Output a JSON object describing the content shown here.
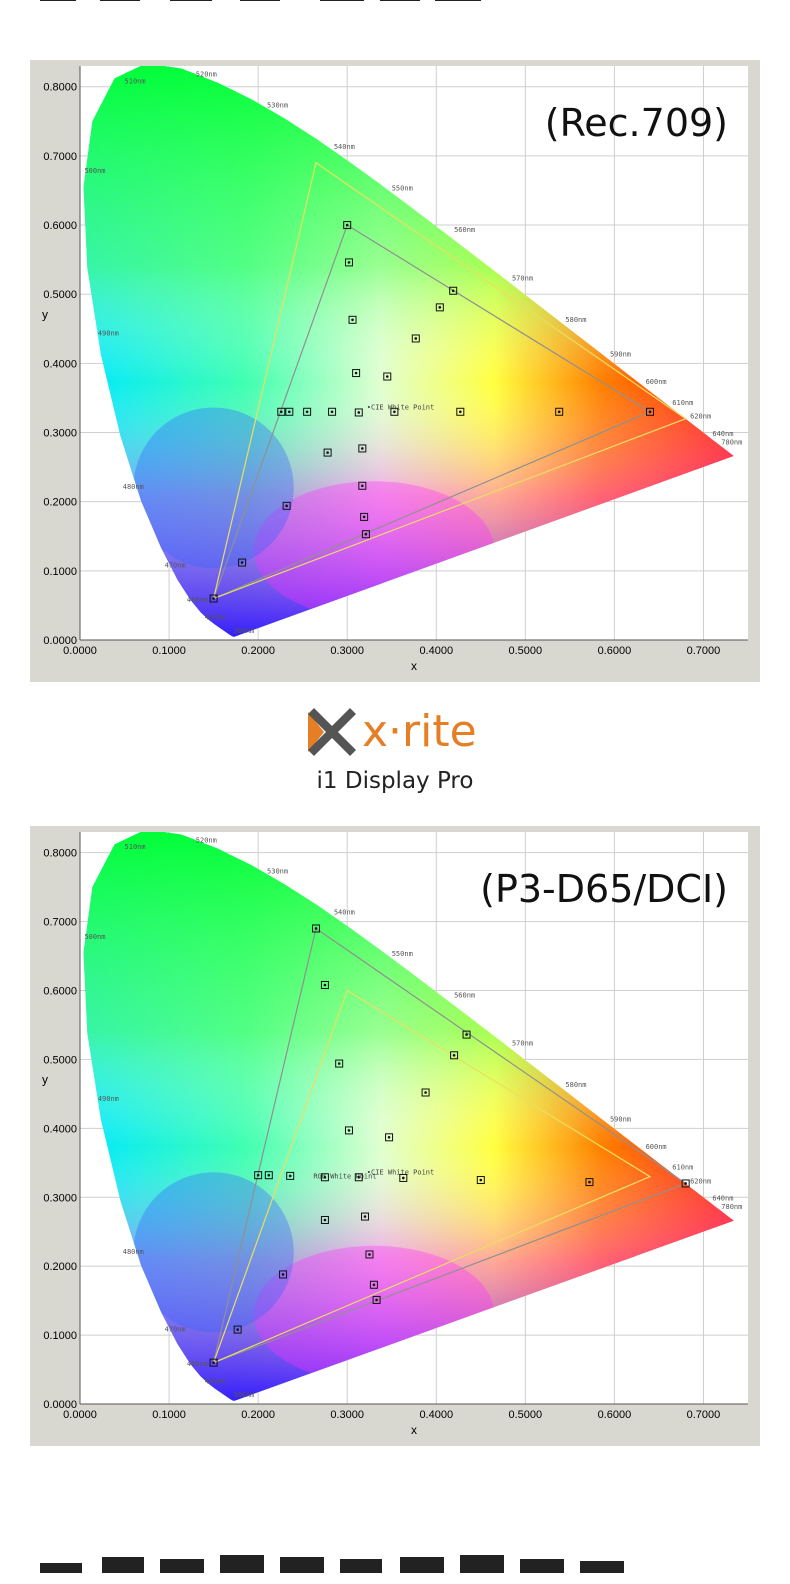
{
  "page": {
    "top_heading": "",
    "bottom_heading": ""
  },
  "brand": {
    "logo_icon": "x-rite-logo-icon",
    "name": "x·rite",
    "product": "i1 Display Pro",
    "accent_color": "#e57e25"
  },
  "chart_data": [
    {
      "type": "scatter",
      "title": "(Rec.709)",
      "xlabel": "x",
      "ylabel": "y",
      "xlim": [
        0,
        0.75
      ],
      "ylim": [
        0,
        0.83
      ],
      "x_ticks": [
        "0.0000",
        "0.1000",
        "0.2000",
        "0.3000",
        "0.4000",
        "0.5000",
        "0.6000",
        "0.7000"
      ],
      "y_ticks": [
        "0.0000",
        "0.1000",
        "0.2000",
        "0.3000",
        "0.4000",
        "0.5000",
        "0.6000",
        "0.7000",
        "0.8000"
      ],
      "grid": true,
      "white_point_label": "CIE White Point",
      "wavelength_labels": [
        "380nm",
        "450nm",
        "460nm",
        "470nm",
        "480nm",
        "490nm",
        "500nm",
        "510nm",
        "520nm",
        "530nm",
        "540nm",
        "550nm",
        "560nm",
        "570nm",
        "580nm",
        "590nm",
        "600nm",
        "610nm",
        "620nm",
        "640nm",
        "780nm"
      ],
      "series": [
        {
          "name": "target_gamut",
          "points": [
            [
              0.64,
              0.33
            ],
            [
              0.3,
              0.6
            ],
            [
              0.15,
              0.06
            ]
          ]
        },
        {
          "name": "reference_gamut",
          "points": [
            [
              0.68,
              0.32
            ],
            [
              0.265,
              0.69
            ],
            [
              0.15,
              0.06
            ]
          ]
        },
        {
          "name": "measured",
          "points": [
            [
              0.64,
              0.33
            ],
            [
              0.538,
              0.33
            ],
            [
              0.427,
              0.33
            ],
            [
              0.353,
              0.33
            ],
            [
              0.313,
              0.329
            ],
            [
              0.283,
              0.33
            ],
            [
              0.255,
              0.33
            ],
            [
              0.235,
              0.33
            ],
            [
              0.226,
              0.33
            ],
            [
              0.3,
              0.6
            ],
            [
              0.302,
              0.546
            ],
            [
              0.306,
              0.463
            ],
            [
              0.31,
              0.386
            ],
            [
              0.345,
              0.381
            ],
            [
              0.377,
              0.436
            ],
            [
              0.404,
              0.481
            ],
            [
              0.419,
              0.505
            ],
            [
              0.278,
              0.271
            ],
            [
              0.317,
              0.277
            ],
            [
              0.317,
              0.223
            ],
            [
              0.319,
              0.178
            ],
            [
              0.321,
              0.153
            ],
            [
              0.232,
              0.194
            ],
            [
              0.182,
              0.112
            ],
            [
              0.15,
              0.06
            ]
          ]
        }
      ]
    },
    {
      "type": "scatter",
      "title": "(P3-D65/DCI)",
      "xlabel": "x",
      "ylabel": "y",
      "xlim": [
        0,
        0.75
      ],
      "ylim": [
        0,
        0.83
      ],
      "x_ticks": [
        "0.0000",
        "0.1000",
        "0.2000",
        "0.3000",
        "0.4000",
        "0.5000",
        "0.6000",
        "0.7000"
      ],
      "y_ticks": [
        "0.0000",
        "0.1000",
        "0.2000",
        "0.3000",
        "0.4000",
        "0.5000",
        "0.6000",
        "0.7000",
        "0.8000"
      ],
      "grid": true,
      "white_point_label": "CIE White Point",
      "rgb_white_label": "RGB White Point",
      "wavelength_labels": [
        "380nm",
        "450nm",
        "460nm",
        "470nm",
        "480nm",
        "490nm",
        "500nm",
        "510nm",
        "520nm",
        "530nm",
        "540nm",
        "550nm",
        "560nm",
        "570nm",
        "580nm",
        "590nm",
        "600nm",
        "610nm",
        "620nm",
        "640nm",
        "780nm"
      ],
      "series": [
        {
          "name": "target_gamut",
          "points": [
            [
              0.68,
              0.32
            ],
            [
              0.265,
              0.69
            ],
            [
              0.15,
              0.06
            ]
          ]
        },
        {
          "name": "reference_gamut",
          "points": [
            [
              0.64,
              0.33
            ],
            [
              0.3,
              0.6
            ],
            [
              0.15,
              0.06
            ]
          ]
        },
        {
          "name": "measured",
          "points": [
            [
              0.68,
              0.32
            ],
            [
              0.572,
              0.322
            ],
            [
              0.45,
              0.325
            ],
            [
              0.363,
              0.328
            ],
            [
              0.313,
              0.329
            ],
            [
              0.275,
              0.329
            ],
            [
              0.236,
              0.331
            ],
            [
              0.212,
              0.332
            ],
            [
              0.2,
              0.332
            ],
            [
              0.265,
              0.69
            ],
            [
              0.275,
              0.608
            ],
            [
              0.291,
              0.494
            ],
            [
              0.302,
              0.397
            ],
            [
              0.347,
              0.387
            ],
            [
              0.388,
              0.452
            ],
            [
              0.42,
              0.506
            ],
            [
              0.434,
              0.536
            ],
            [
              0.275,
              0.267
            ],
            [
              0.32,
              0.272
            ],
            [
              0.325,
              0.217
            ],
            [
              0.33,
              0.173
            ],
            [
              0.333,
              0.151
            ],
            [
              0.228,
              0.188
            ],
            [
              0.177,
              0.108
            ],
            [
              0.15,
              0.06
            ]
          ]
        }
      ]
    }
  ]
}
